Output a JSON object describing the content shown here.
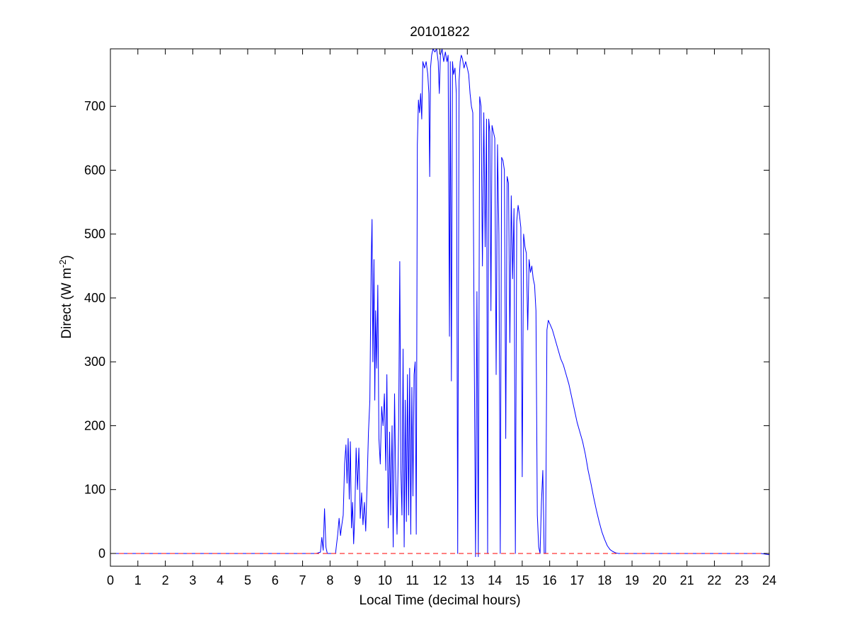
{
  "chart_data": {
    "type": "line",
    "title": "20101822",
    "xlabel": "Local Time (decimal hours)",
    "ylabel": "Direct (W m",
    "ylabel_sup": "-2",
    "ylabel_close": ")",
    "xlim": [
      0,
      24
    ],
    "ylim": [
      -20,
      790
    ],
    "x_ticks": [
      0,
      1,
      2,
      3,
      4,
      5,
      6,
      7,
      8,
      9,
      10,
      11,
      12,
      13,
      14,
      15,
      16,
      17,
      18,
      19,
      20,
      21,
      22,
      23,
      24
    ],
    "y_ticks": [
      0,
      100,
      200,
      300,
      400,
      500,
      600,
      700
    ],
    "grid": false,
    "colors": {
      "series": "#0000ff",
      "reference": "#ff0000",
      "axis": "#000000"
    },
    "series": [
      {
        "style": "solid",
        "color": "#0000ff",
        "points": [
          [
            0,
            0
          ],
          [
            7.5,
            0
          ],
          [
            7.65,
            2
          ],
          [
            7.7,
            25
          ],
          [
            7.75,
            5
          ],
          [
            7.8,
            70
          ],
          [
            7.85,
            10
          ],
          [
            7.9,
            0
          ],
          [
            8.2,
            0
          ],
          [
            8.28,
            30
          ],
          [
            8.33,
            55
          ],
          [
            8.38,
            28
          ],
          [
            8.43,
            45
          ],
          [
            8.48,
            60
          ],
          [
            8.53,
            140
          ],
          [
            8.58,
            170
          ],
          [
            8.62,
            110
          ],
          [
            8.66,
            180
          ],
          [
            8.7,
            85
          ],
          [
            8.74,
            175
          ],
          [
            8.78,
            40
          ],
          [
            8.82,
            80
          ],
          [
            8.86,
            15
          ],
          [
            8.9,
            60
          ],
          [
            8.95,
            165
          ],
          [
            9.0,
            100
          ],
          [
            9.05,
            165
          ],
          [
            9.1,
            55
          ],
          [
            9.15,
            95
          ],
          [
            9.2,
            45
          ],
          [
            9.25,
            80
          ],
          [
            9.3,
            35
          ],
          [
            9.35,
            110
          ],
          [
            9.4,
            190
          ],
          [
            9.45,
            240
          ],
          [
            9.5,
            460
          ],
          [
            9.53,
            523
          ],
          [
            9.56,
            300
          ],
          [
            9.6,
            460
          ],
          [
            9.63,
            240
          ],
          [
            9.66,
            380
          ],
          [
            9.7,
            290
          ],
          [
            9.74,
            420
          ],
          [
            9.78,
            180
          ],
          [
            9.83,
            140
          ],
          [
            9.88,
            230
          ],
          [
            9.93,
            200
          ],
          [
            9.98,
            250
          ],
          [
            10.03,
            130
          ],
          [
            10.07,
            280
          ],
          [
            10.12,
            40
          ],
          [
            10.17,
            190
          ],
          [
            10.21,
            60
          ],
          [
            10.26,
            200
          ],
          [
            10.3,
            10
          ],
          [
            10.35,
            250
          ],
          [
            10.39,
            120
          ],
          [
            10.44,
            30
          ],
          [
            10.5,
            200
          ],
          [
            10.54,
            457
          ],
          [
            10.58,
            130
          ],
          [
            10.62,
            60
          ],
          [
            10.66,
            320
          ],
          [
            10.7,
            10
          ],
          [
            10.74,
            240
          ],
          [
            10.78,
            50
          ],
          [
            10.82,
            280
          ],
          [
            10.86,
            60
          ],
          [
            10.9,
            290
          ],
          [
            10.94,
            30
          ],
          [
            10.98,
            260
          ],
          [
            11.02,
            90
          ],
          [
            11.06,
            280
          ],
          [
            11.1,
            300
          ],
          [
            11.14,
            30
          ],
          [
            11.18,
            640
          ],
          [
            11.22,
            710
          ],
          [
            11.26,
            690
          ],
          [
            11.3,
            720
          ],
          [
            11.34,
            680
          ],
          [
            11.38,
            770
          ],
          [
            11.44,
            760
          ],
          [
            11.5,
            770
          ],
          [
            11.56,
            750
          ],
          [
            11.6,
            720
          ],
          [
            11.63,
            590
          ],
          [
            11.66,
            760
          ],
          [
            11.7,
            780
          ],
          [
            11.75,
            790
          ],
          [
            11.82,
            785
          ],
          [
            11.88,
            790
          ],
          [
            11.94,
            770
          ],
          [
            11.98,
            720
          ],
          [
            12.02,
            780
          ],
          [
            12.08,
            790
          ],
          [
            12.14,
            770
          ],
          [
            12.2,
            785
          ],
          [
            12.26,
            770
          ],
          [
            12.3,
            780
          ],
          [
            12.35,
            340
          ],
          [
            12.38,
            770
          ],
          [
            12.42,
            270
          ],
          [
            12.46,
            770
          ],
          [
            12.5,
            750
          ],
          [
            12.55,
            760
          ],
          [
            12.6,
            720
          ],
          [
            12.65,
            0
          ],
          [
            12.7,
            740
          ],
          [
            12.74,
            770
          ],
          [
            12.78,
            780
          ],
          [
            12.82,
            775
          ],
          [
            12.88,
            760
          ],
          [
            12.94,
            770
          ],
          [
            13.0,
            760
          ],
          [
            13.05,
            750
          ],
          [
            13.1,
            720
          ],
          [
            13.15,
            700
          ],
          [
            13.2,
            690
          ],
          [
            13.25,
            330
          ],
          [
            13.3,
            -5
          ],
          [
            13.35,
            410
          ],
          [
            13.4,
            -5
          ],
          [
            13.45,
            715
          ],
          [
            13.5,
            700
          ],
          [
            13.55,
            450
          ],
          [
            13.6,
            690
          ],
          [
            13.65,
            480
          ],
          [
            13.7,
            680
          ],
          [
            13.74,
            0
          ],
          [
            13.78,
            680
          ],
          [
            13.82,
            660
          ],
          [
            13.86,
            380
          ],
          [
            13.9,
            670
          ],
          [
            14.0,
            650
          ],
          [
            14.05,
            280
          ],
          [
            14.1,
            640
          ],
          [
            14.15,
            500
          ],
          [
            14.2,
            0
          ],
          [
            14.25,
            620
          ],
          [
            14.3,
            615
          ],
          [
            14.35,
            600
          ],
          [
            14.4,
            180
          ],
          [
            14.45,
            590
          ],
          [
            14.5,
            580
          ],
          [
            14.55,
            330
          ],
          [
            14.6,
            560
          ],
          [
            14.65,
            430
          ],
          [
            14.7,
            540
          ],
          [
            14.75,
            0
          ],
          [
            14.8,
            520
          ],
          [
            14.85,
            545
          ],
          [
            14.9,
            530
          ],
          [
            14.95,
            510
          ],
          [
            15.0,
            120
          ],
          [
            15.05,
            500
          ],
          [
            15.1,
            480
          ],
          [
            15.15,
            470
          ],
          [
            15.2,
            350
          ],
          [
            15.25,
            460
          ],
          [
            15.3,
            440
          ],
          [
            15.35,
            450
          ],
          [
            15.4,
            430
          ],
          [
            15.45,
            420
          ],
          [
            15.5,
            380
          ],
          [
            15.55,
            60
          ],
          [
            15.6,
            10
          ],
          [
            15.65,
            0
          ],
          [
            15.7,
            80
          ],
          [
            15.75,
            130
          ],
          [
            15.8,
            0
          ],
          [
            15.85,
            0
          ],
          [
            15.9,
            350
          ],
          [
            15.95,
            365
          ],
          [
            16.0,
            360
          ],
          [
            16.1,
            350
          ],
          [
            16.2,
            335
          ],
          [
            16.3,
            320
          ],
          [
            16.4,
            305
          ],
          [
            16.5,
            295
          ],
          [
            16.6,
            280
          ],
          [
            16.7,
            265
          ],
          [
            16.8,
            245
          ],
          [
            16.9,
            225
          ],
          [
            17.0,
            205
          ],
          [
            17.1,
            190
          ],
          [
            17.2,
            175
          ],
          [
            17.3,
            155
          ],
          [
            17.4,
            130
          ],
          [
            17.5,
            110
          ],
          [
            17.6,
            88
          ],
          [
            17.7,
            68
          ],
          [
            17.8,
            50
          ],
          [
            17.9,
            34
          ],
          [
            18.0,
            22
          ],
          [
            18.1,
            12
          ],
          [
            18.2,
            6
          ],
          [
            18.3,
            3
          ],
          [
            18.4,
            1
          ],
          [
            18.5,
            0
          ],
          [
            19.0,
            0
          ],
          [
            20,
            0
          ],
          [
            21,
            0
          ],
          [
            22,
            0
          ],
          [
            23,
            0
          ],
          [
            23.7,
            0
          ],
          [
            24,
            -2
          ]
        ]
      },
      {
        "style": "dashed",
        "color": "#ff0000",
        "points": [
          [
            0,
            0
          ],
          [
            24,
            0
          ]
        ]
      }
    ]
  }
}
